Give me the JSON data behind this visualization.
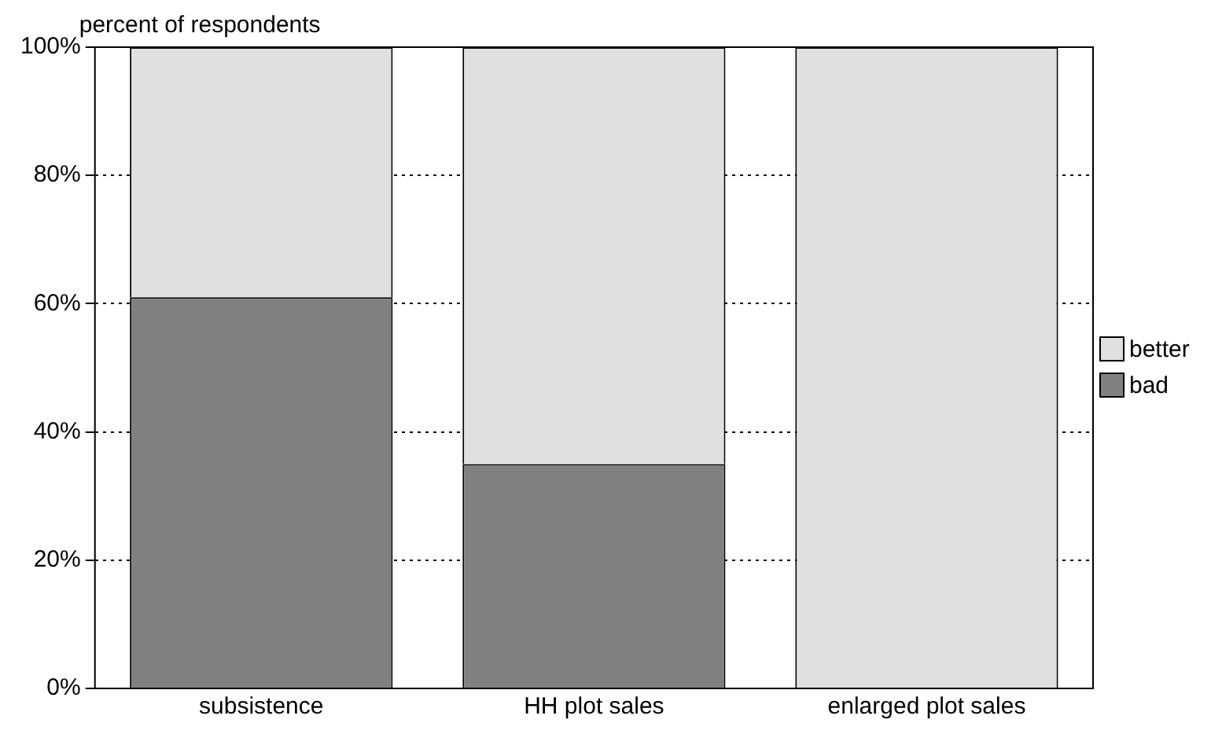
{
  "chart_data": {
    "type": "bar",
    "ylabel": "percent of respondents",
    "categories": [
      "subsistence",
      "HH plot sales",
      "enlarged plot sales"
    ],
    "series": [
      {
        "name": "bad",
        "color": "#808080",
        "values": [
          61,
          35,
          0
        ]
      },
      {
        "name": "better",
        "color": "#e0e0e0",
        "values": [
          39,
          65,
          100
        ]
      }
    ],
    "stacked": true,
    "ylim": [
      0,
      100
    ],
    "yticks": [
      {
        "value": 0,
        "label": "0%"
      },
      {
        "value": 20,
        "label": "20%"
      },
      {
        "value": 40,
        "label": "40%"
      },
      {
        "value": 60,
        "label": "60%"
      },
      {
        "value": 80,
        "label": "80%"
      },
      {
        "value": 100,
        "label": "100%"
      }
    ],
    "grid": "y",
    "legend": "right"
  }
}
